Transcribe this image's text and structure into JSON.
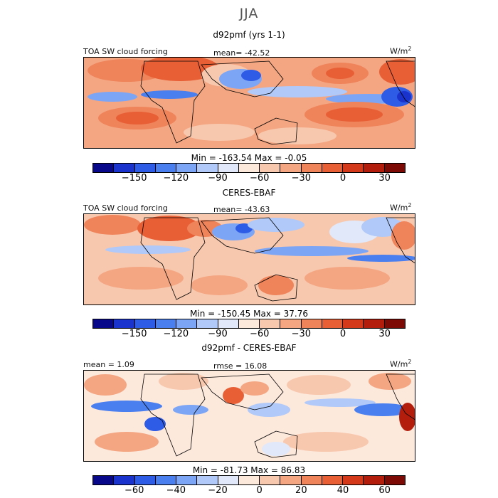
{
  "season": "JJA",
  "colors": [
    "#08088a",
    "#1a33cc",
    "#2e5ce6",
    "#4a7fef",
    "#7ca6f5",
    "#b0c9f8",
    "#e0e8fa",
    "#fde8dc",
    "#f8c8ae",
    "#f4a682",
    "#ef835a",
    "#e85f36",
    "#d43a1a",
    "#b31d0c",
    "#7d0a05"
  ],
  "panels": [
    {
      "title": "d92pmf (yrs 1-1)",
      "left_label": "TOA SW cloud forcing",
      "center_label": "mean=  -42.52",
      "units": "W/m",
      "units_exp": "2",
      "stats": "Min  =  -163.54  Max  =   -0.05",
      "ticks": [
        "-150",
        "-120",
        "-90",
        "-60",
        "-30",
        "0",
        "30"
      ]
    },
    {
      "title": "CERES-EBAF",
      "left_label": "TOA SW cloud forcing",
      "center_label": "mean=  -43.63",
      "units": "W/m",
      "units_exp": "2",
      "stats": "Min  =  -150.45  Max  =   37.76",
      "ticks": [
        "-150",
        "-120",
        "-90",
        "-60",
        "-30",
        "0",
        "30"
      ]
    },
    {
      "title": "d92pmf - CERES-EBAF",
      "left_label": "mean =    1.09",
      "center_label": "rmse  =   16.08",
      "units": "W/m",
      "units_exp": "2",
      "stats": "Min  =  -81.73  Max  =   86.83",
      "ticks": [
        "-60",
        "-40",
        "-20",
        "0",
        "20",
        "40",
        "60"
      ]
    }
  ],
  "chart_data": [
    {
      "type": "heatmap",
      "title": "d92pmf (yrs 1-1)",
      "variable": "TOA SW cloud forcing",
      "units": "W/m2",
      "mean": -42.52,
      "min": -163.54,
      "max": -0.05,
      "colorbar_ticks": [
        -150,
        -120,
        -90,
        -60,
        -30,
        0,
        30
      ]
    },
    {
      "type": "heatmap",
      "title": "CERES-EBAF",
      "variable": "TOA SW cloud forcing",
      "units": "W/m2",
      "mean": -43.63,
      "min": -150.45,
      "max": 37.76,
      "colorbar_ticks": [
        -150,
        -120,
        -90,
        -60,
        -30,
        0,
        30
      ]
    },
    {
      "type": "heatmap",
      "title": "d92pmf - CERES-EBAF",
      "units": "W/m2",
      "mean": 1.09,
      "rmse": 16.08,
      "min": -81.73,
      "max": 86.83,
      "colorbar_ticks": [
        -60,
        -40,
        -20,
        0,
        20,
        40,
        60
      ]
    }
  ]
}
